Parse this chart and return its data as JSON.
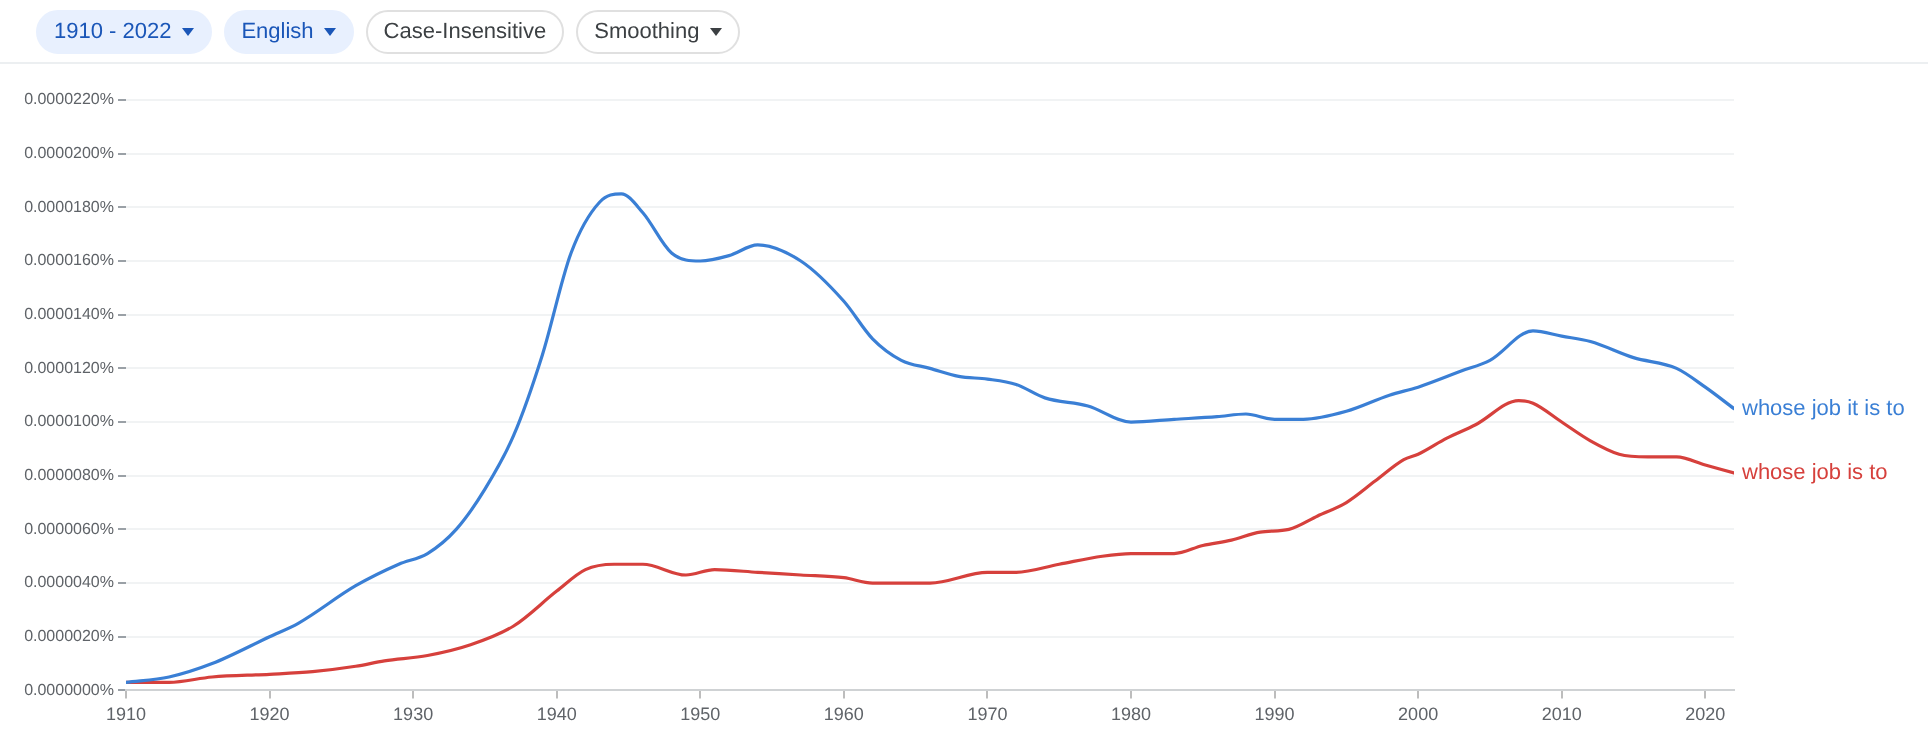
{
  "chart_data": {
    "type": "line",
    "annotations": [
      "1910 - 2022",
      "English",
      "Case-Insensitive",
      "Smoothing"
    ],
    "xlim": [
      1910,
      2022
    ],
    "xticks": [
      1910,
      1920,
      1930,
      1940,
      1950,
      1960,
      1970,
      1980,
      1990,
      2000,
      2010,
      2020
    ],
    "ylim": [
      0,
      2.2e-05
    ],
    "yticks": [
      {
        "value": 0,
        "label": "0.0000000%"
      },
      {
        "value": 2e-06,
        "label": "0.0000020%"
      },
      {
        "value": 4e-06,
        "label": "0.0000040%"
      },
      {
        "value": 6e-06,
        "label": "0.0000060%"
      },
      {
        "value": 8e-06,
        "label": "0.0000080%"
      },
      {
        "value": 1e-05,
        "label": "0.0000100%"
      },
      {
        "value": 1.2e-05,
        "label": "0.0000120%"
      },
      {
        "value": 1.4e-05,
        "label": "0.0000140%"
      },
      {
        "value": 1.6e-05,
        "label": "0.0000160%"
      },
      {
        "value": 1.8e-05,
        "label": "0.0000180%"
      },
      {
        "value": 2e-05,
        "label": "0.0000200%"
      },
      {
        "value": 2.2e-05,
        "label": "0.0000220%"
      }
    ],
    "grid": "y",
    "marker": "none",
    "line_style": "solid",
    "x": [
      1910,
      1913,
      1916,
      1920,
      1922,
      1926,
      1929,
      1931,
      1933,
      1935,
      1937,
      1939,
      1941,
      1943,
      1944.5,
      1946,
      1948,
      1950,
      1952,
      1954,
      1957,
      1960,
      1962,
      1964,
      1966,
      1968,
      1970,
      1972,
      1974,
      1977,
      1980,
      1983,
      1986,
      1988,
      1990,
      1992,
      1995,
      1998,
      2000,
      2003,
      2005,
      2008,
      2010,
      2012,
      2015,
      2018,
      2020,
      2022
    ],
    "series": [
      {
        "name": "whose job it is to",
        "color": "#3a7fd5",
        "values": [
          3e-07,
          5e-07,
          1e-06,
          2e-06,
          2.5e-06,
          3.9e-06,
          4.7e-06,
          5.1e-06,
          6e-06,
          7.5e-06,
          9.5e-06,
          1.25e-05,
          1.63e-05,
          1.82e-05,
          1.85e-05,
          1.78e-05,
          1.63e-05,
          1.6e-05,
          1.62e-05,
          1.66e-05,
          1.6e-05,
          1.45e-05,
          1.31e-05,
          1.23e-05,
          1.2e-05,
          1.17e-05,
          1.16e-05,
          1.14e-05,
          1.09e-05,
          1.06e-05,
          1e-05,
          1.01e-05,
          1.02e-05,
          1.03e-05,
          1.01e-05,
          1.01e-05,
          1.04e-05,
          1.1e-05,
          1.13e-05,
          1.19e-05,
          1.23e-05,
          1.34e-05,
          1.32e-05,
          1.3e-05,
          1.24e-05,
          1.2e-05,
          1.13e-05,
          1.05e-05
        ]
      },
      {
        "name": "whose job is to",
        "color": "#d6403c",
        "x": [
          1910,
          1913,
          1916,
          1920,
          1923,
          1926,
          1928,
          1931,
          1934,
          1937,
          1940,
          1942,
          1944,
          1946,
          1949,
          1951,
          1954,
          1957,
          1960,
          1962,
          1966,
          1970,
          1972,
          1975,
          1978,
          1980,
          1983,
          1985,
          1987,
          1989,
          1991,
          1993,
          1995,
          1997,
          1999,
          2000,
          2002,
          2004,
          2007,
          2008,
          2010,
          2012,
          2014,
          2016,
          2018,
          2020,
          2022
        ],
        "values": [
          3e-07,
          3e-07,
          5e-07,
          6e-07,
          7e-07,
          9e-07,
          1.1e-06,
          1.3e-06,
          1.7e-06,
          2.4e-06,
          3.7e-06,
          4.5e-06,
          4.7e-06,
          4.7e-06,
          4.3e-06,
          4.5e-06,
          4.4e-06,
          4.3e-06,
          4.2e-06,
          4e-06,
          4e-06,
          4.4e-06,
          4.4e-06,
          4.7e-06,
          5e-06,
          5.1e-06,
          5.1e-06,
          5.4e-06,
          5.6e-06,
          5.9e-06,
          6e-06,
          6.5e-06,
          7e-06,
          7.8e-06,
          8.6e-06,
          8.8e-06,
          9.4e-06,
          9.9e-06,
          1.08e-05,
          1.07e-05,
          1e-05,
          9.3e-06,
          8.8e-06,
          8.7e-06,
          8.7e-06,
          8.4e-06,
          8.1e-06
        ]
      }
    ]
  }
}
